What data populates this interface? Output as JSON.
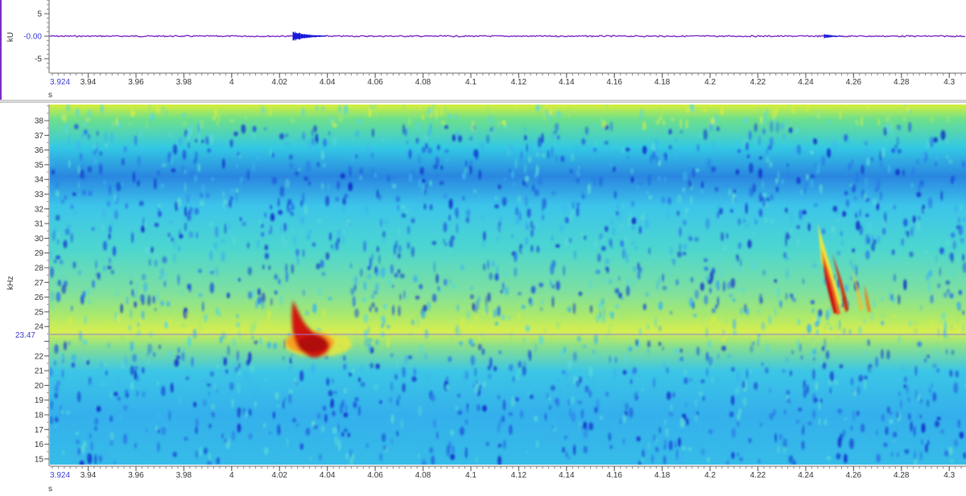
{
  "oscillogram": {
    "y_unit": "kU",
    "y_ticks": [
      "5",
      "-0.00",
      "-5"
    ],
    "y_cursor_value": "-0.00",
    "x_unit": "s",
    "x_start_label": "3.924",
    "x_ticks": [
      "3.94",
      "3.96",
      "3.98",
      "4",
      "4.02",
      "4.04",
      "4.06",
      "4.08",
      "4.1",
      "4.12",
      "4.14",
      "4.16",
      "4.18",
      "4.2",
      "4.22",
      "4.24",
      "4.26",
      "4.28",
      "4.3"
    ]
  },
  "spectrogram": {
    "y_unit": "kHz",
    "y_ticks": [
      "38",
      "37",
      "36",
      "35",
      "34",
      "33",
      "32",
      "31",
      "30",
      "29",
      "28",
      "27",
      "26",
      "25",
      "24",
      "23",
      "22",
      "21",
      "20",
      "19",
      "18",
      "17",
      "16",
      "15"
    ],
    "cursor_freq_label": "23.47",
    "x_unit": "s",
    "x_start_label": "3.924",
    "x_ticks": [
      "3.94",
      "3.96",
      "3.98",
      "4",
      "4.02",
      "4.04",
      "4.06",
      "4.08",
      "4.1",
      "4.12",
      "4.14",
      "4.16",
      "4.18",
      "4.2",
      "4.22",
      "4.24",
      "4.26",
      "4.28",
      "4.3"
    ]
  },
  "colors": {
    "waveform": "#7a2cc4",
    "burst": "#1a1ad8",
    "cursor": "#9a7ad8",
    "label_highlight": "#3a3ad8",
    "colormap_low": "#1030d0",
    "colormap_mid": "#30d0e0",
    "colormap_high": "#e8f040",
    "colormap_peak": "#c81010"
  }
}
